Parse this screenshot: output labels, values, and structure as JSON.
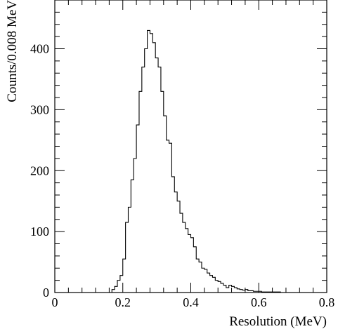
{
  "chart_data": {
    "type": "histogram",
    "xlabel": "Resolution (MeV)",
    "ylabel": "Counts/0.008 MeV",
    "xlim": [
      0,
      0.8
    ],
    "ylim": [
      0,
      480
    ],
    "x_ticks": [
      {
        "value": 0,
        "label": "0"
      },
      {
        "value": 0.2,
        "label": "0.2"
      },
      {
        "value": 0.4,
        "label": "0.4"
      },
      {
        "value": 0.6,
        "label": "0.6"
      },
      {
        "value": 0.8,
        "label": "0.8"
      }
    ],
    "y_ticks": [
      {
        "value": 0,
        "label": "0"
      },
      {
        "value": 100,
        "label": "100"
      },
      {
        "value": 200,
        "label": "200"
      },
      {
        "value": 300,
        "label": "300"
      },
      {
        "value": 400,
        "label": "400"
      }
    ],
    "bin_width": 0.008,
    "bin_start": 0.16,
    "counts": [
      0,
      5,
      10,
      20,
      28,
      55,
      115,
      140,
      185,
      220,
      275,
      330,
      370,
      400,
      430,
      425,
      410,
      385,
      370,
      330,
      290,
      250,
      245,
      190,
      165,
      150,
      130,
      115,
      105,
      95,
      90,
      75,
      55,
      50,
      40,
      38,
      32,
      28,
      25,
      20,
      18,
      15,
      12,
      8,
      12,
      10,
      8,
      6,
      5,
      4,
      5,
      3,
      3,
      2,
      2,
      2,
      1,
      1,
      1,
      1,
      1,
      1,
      1,
      0,
      0,
      0,
      0,
      0,
      0,
      0,
      0
    ]
  }
}
